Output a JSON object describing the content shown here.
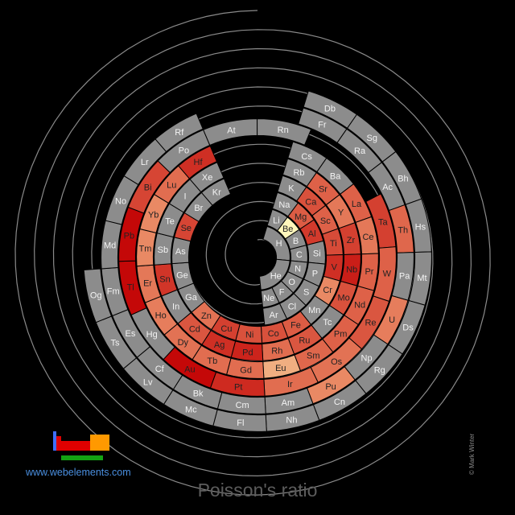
{
  "title": "Poisson's ratio",
  "site": "www.webelements.com",
  "credit": "© Mark Winter",
  "colors": {
    "no_data": "#8c8c8c",
    "scale_low": "#fff7bc",
    "scale_high": "#c40808",
    "background": "#000000",
    "logo_blue": "#3f6fff",
    "logo_red": "#e00000",
    "logo_orange": "#ff9900",
    "logo_green": "#13a313"
  },
  "chart_data": {
    "type": "heatmap",
    "layout": "spiral periodic table",
    "value_range": [
      0.03,
      0.44
    ],
    "elements": [
      {
        "symbol": "H",
        "value": null
      },
      {
        "symbol": "He",
        "value": null
      },
      {
        "symbol": "Li",
        "value": null
      },
      {
        "symbol": "Be",
        "value": 0.032
      },
      {
        "symbol": "B",
        "value": null
      },
      {
        "symbol": "C",
        "value": null
      },
      {
        "symbol": "N",
        "value": null
      },
      {
        "symbol": "O",
        "value": null
      },
      {
        "symbol": "F",
        "value": null
      },
      {
        "symbol": "Ne",
        "value": null
      },
      {
        "symbol": "Na",
        "value": null
      },
      {
        "symbol": "Mg",
        "value": 0.29
      },
      {
        "symbol": "Al",
        "value": 0.35
      },
      {
        "symbol": "Si",
        "value": null
      },
      {
        "symbol": "P",
        "value": null
      },
      {
        "symbol": "S",
        "value": null
      },
      {
        "symbol": "Cl",
        "value": null
      },
      {
        "symbol": "Ar",
        "value": null
      },
      {
        "symbol": "K",
        "value": null
      },
      {
        "symbol": "Ca",
        "value": 0.31
      },
      {
        "symbol": "Sc",
        "value": 0.28
      },
      {
        "symbol": "Ti",
        "value": 0.32
      },
      {
        "symbol": "V",
        "value": 0.37
      },
      {
        "symbol": "Cr",
        "value": 0.21
      },
      {
        "symbol": "Mn",
        "value": null
      },
      {
        "symbol": "Fe",
        "value": 0.29
      },
      {
        "symbol": "Co",
        "value": 0.31
      },
      {
        "symbol": "Ni",
        "value": 0.31
      },
      {
        "symbol": "Cu",
        "value": 0.34
      },
      {
        "symbol": "Zn",
        "value": 0.25
      },
      {
        "symbol": "Ga",
        "value": null
      },
      {
        "symbol": "Ge",
        "value": null
      },
      {
        "symbol": "As",
        "value": null
      },
      {
        "symbol": "Se",
        "value": 0.33
      },
      {
        "symbol": "Br",
        "value": null
      },
      {
        "symbol": "Kr",
        "value": null
      },
      {
        "symbol": "Rb",
        "value": null
      },
      {
        "symbol": "Sr",
        "value": 0.28
      },
      {
        "symbol": "Y",
        "value": 0.24
      },
      {
        "symbol": "Zr",
        "value": 0.34
      },
      {
        "symbol": "Nb",
        "value": 0.4
      },
      {
        "symbol": "Mo",
        "value": 0.31
      },
      {
        "symbol": "Tc",
        "value": null
      },
      {
        "symbol": "Ru",
        "value": 0.3
      },
      {
        "symbol": "Rh",
        "value": 0.26
      },
      {
        "symbol": "Pd",
        "value": 0.39
      },
      {
        "symbol": "Ag",
        "value": 0.37
      },
      {
        "symbol": "Cd",
        "value": 0.3
      },
      {
        "symbol": "In",
        "value": null
      },
      {
        "symbol": "Sn",
        "value": 0.36
      },
      {
        "symbol": "Sb",
        "value": null
      },
      {
        "symbol": "Te",
        "value": null
      },
      {
        "symbol": "I",
        "value": null
      },
      {
        "symbol": "Xe",
        "value": null
      },
      {
        "symbol": "Cs",
        "value": null
      },
      {
        "symbol": "Ba",
        "value": null
      },
      {
        "symbol": "La",
        "value": 0.28
      },
      {
        "symbol": "Ce",
        "value": 0.24
      },
      {
        "symbol": "Pr",
        "value": 0.28
      },
      {
        "symbol": "Nd",
        "value": 0.28
      },
      {
        "symbol": "Pm",
        "value": 0.28
      },
      {
        "symbol": "Sm",
        "value": 0.27
      },
      {
        "symbol": "Eu",
        "value": 0.15
      },
      {
        "symbol": "Gd",
        "value": 0.26
      },
      {
        "symbol": "Tb",
        "value": 0.26
      },
      {
        "symbol": "Dy",
        "value": 0.25
      },
      {
        "symbol": "Ho",
        "value": 0.23
      },
      {
        "symbol": "Er",
        "value": 0.24
      },
      {
        "symbol": "Tm",
        "value": 0.21
      },
      {
        "symbol": "Yb",
        "value": 0.21
      },
      {
        "symbol": "Lu",
        "value": 0.26
      },
      {
        "symbol": "Hf",
        "value": 0.37
      },
      {
        "symbol": "Ta",
        "value": 0.34
      },
      {
        "symbol": "W",
        "value": 0.28
      },
      {
        "symbol": "Re",
        "value": 0.3
      },
      {
        "symbol": "Os",
        "value": 0.25
      },
      {
        "symbol": "Ir",
        "value": 0.26
      },
      {
        "symbol": "Pt",
        "value": 0.38
      },
      {
        "symbol": "Au",
        "value": 0.44
      },
      {
        "symbol": "Hg",
        "value": null
      },
      {
        "symbol": "Tl",
        "value": 0.45
      },
      {
        "symbol": "Pb",
        "value": 0.44
      },
      {
        "symbol": "Bi",
        "value": 0.33
      },
      {
        "symbol": "Po",
        "value": null
      },
      {
        "symbol": "At",
        "value": null
      },
      {
        "symbol": "Rn",
        "value": null
      },
      {
        "symbol": "Fr",
        "value": null
      },
      {
        "symbol": "Ra",
        "value": null
      },
      {
        "symbol": "Ac",
        "value": null
      },
      {
        "symbol": "Th",
        "value": 0.27
      },
      {
        "symbol": "Pa",
        "value": null
      },
      {
        "symbol": "U",
        "value": 0.23
      },
      {
        "symbol": "Np",
        "value": null
      },
      {
        "symbol": "Pu",
        "value": 0.21
      },
      {
        "symbol": "Am",
        "value": null
      },
      {
        "symbol": "Cm",
        "value": null
      },
      {
        "symbol": "Bk",
        "value": null
      },
      {
        "symbol": "Cf",
        "value": null
      },
      {
        "symbol": "Es",
        "value": null
      },
      {
        "symbol": "Fm",
        "value": null
      },
      {
        "symbol": "Md",
        "value": null
      },
      {
        "symbol": "No",
        "value": null
      },
      {
        "symbol": "Lr",
        "value": null
      },
      {
        "symbol": "Rf",
        "value": null
      },
      {
        "symbol": "Db",
        "value": null
      },
      {
        "symbol": "Sg",
        "value": null
      },
      {
        "symbol": "Bh",
        "value": null
      },
      {
        "symbol": "Hs",
        "value": null
      },
      {
        "symbol": "Mt",
        "value": null
      },
      {
        "symbol": "Ds",
        "value": null
      },
      {
        "symbol": "Rg",
        "value": null
      },
      {
        "symbol": "Cn",
        "value": null
      },
      {
        "symbol": "Nh",
        "value": null
      },
      {
        "symbol": "Fl",
        "value": null
      },
      {
        "symbol": "Mc",
        "value": null
      },
      {
        "symbol": "Lv",
        "value": null
      },
      {
        "symbol": "Ts",
        "value": null
      },
      {
        "symbol": "Og",
        "value": null
      }
    ]
  }
}
